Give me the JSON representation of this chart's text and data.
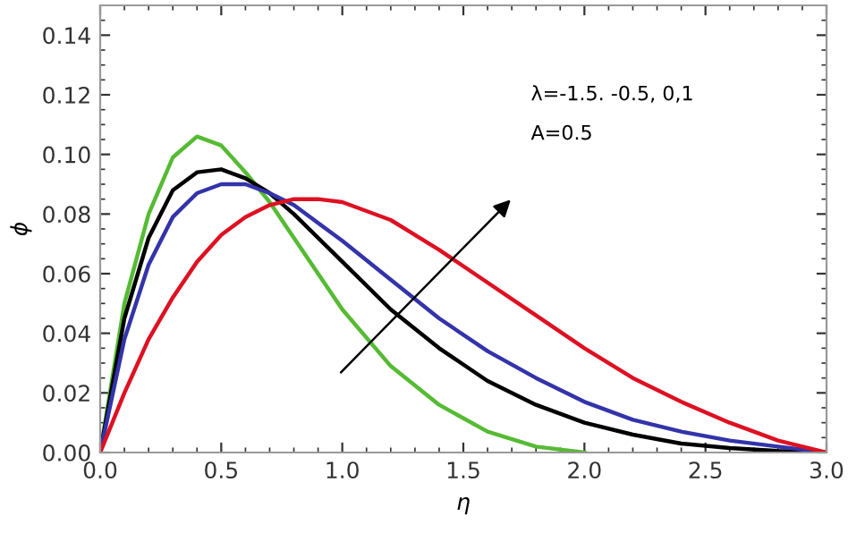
{
  "chart_data": {
    "type": "line",
    "xlabel": "η",
    "ylabel": "ϕ",
    "xlim": [
      0,
      3
    ],
    "ylim": [
      0,
      0.15
    ],
    "xticks": [
      {
        "value": 0,
        "label": "0.0"
      },
      0.5,
      {
        "value": 1,
        "label": "1.0"
      },
      1.5,
      {
        "value": 2,
        "label": "2.0"
      },
      2.5,
      {
        "value": 3,
        "label": "3.0"
      }
    ],
    "yticks": [
      {
        "value": 0,
        "label": "0.00"
      },
      {
        "value": 0.02,
        "label": "0.02"
      },
      {
        "value": 0.04,
        "label": "0.04"
      },
      {
        "value": 0.06,
        "label": "0.06"
      },
      {
        "value": 0.08,
        "label": "0.08"
      },
      {
        "value": 0.1,
        "label": "0.10"
      },
      {
        "value": 0.12,
        "label": "0.12"
      },
      {
        "value": 0.14,
        "label": "0.14"
      }
    ],
    "grid": false,
    "legend": false,
    "marker": "none",
    "line_style": "solid",
    "series": [
      {
        "color": "#55bb33",
        "x": [
          0,
          0.1,
          0.2,
          0.3,
          0.4,
          0.5,
          0.6,
          0.7,
          0.8,
          1.0,
          1.2,
          1.4,
          1.6,
          1.8,
          2.0
        ],
        "values": [
          0,
          0.05,
          0.08,
          0.099,
          0.106,
          0.103,
          0.094,
          0.084,
          0.072,
          0.048,
          0.029,
          0.016,
          0.007,
          0.002,
          0
        ]
      },
      {
        "color": "#000000",
        "x": [
          0,
          0.1,
          0.2,
          0.3,
          0.4,
          0.5,
          0.6,
          0.7,
          0.8,
          1.0,
          1.2,
          1.4,
          1.6,
          1.8,
          2.0,
          2.2,
          2.4,
          2.6,
          2.8,
          3.0
        ],
        "values": [
          0,
          0.045,
          0.072,
          0.088,
          0.094,
          0.095,
          0.092,
          0.087,
          0.08,
          0.064,
          0.048,
          0.035,
          0.024,
          0.016,
          0.01,
          0.006,
          0.003,
          0.0015,
          0.0005,
          0
        ]
      },
      {
        "color": "#3333aa",
        "x": [
          0,
          0.1,
          0.2,
          0.3,
          0.4,
          0.5,
          0.6,
          0.7,
          0.8,
          1.0,
          1.2,
          1.4,
          1.6,
          1.8,
          2.0,
          2.2,
          2.4,
          2.6,
          2.8,
          3.0
        ],
        "values": [
          0,
          0.038,
          0.063,
          0.079,
          0.087,
          0.09,
          0.09,
          0.087,
          0.083,
          0.071,
          0.058,
          0.045,
          0.034,
          0.025,
          0.017,
          0.011,
          0.007,
          0.004,
          0.002,
          0
        ]
      },
      {
        "color": "#dd1122",
        "x": [
          0,
          0.1,
          0.2,
          0.3,
          0.4,
          0.5,
          0.6,
          0.7,
          0.8,
          0.9,
          1.0,
          1.2,
          1.4,
          1.6,
          1.8,
          2.0,
          2.2,
          2.4,
          2.6,
          2.8,
          3.0
        ],
        "values": [
          0,
          0.02,
          0.038,
          0.052,
          0.064,
          0.073,
          0.079,
          0.083,
          0.085,
          0.085,
          0.084,
          0.078,
          0.068,
          0.057,
          0.046,
          0.035,
          0.025,
          0.017,
          0.01,
          0.004,
          0
        ]
      }
    ],
    "annotations": [
      "λ=-1.5. -0.5, 0,1",
      "A=0.5"
    ]
  }
}
